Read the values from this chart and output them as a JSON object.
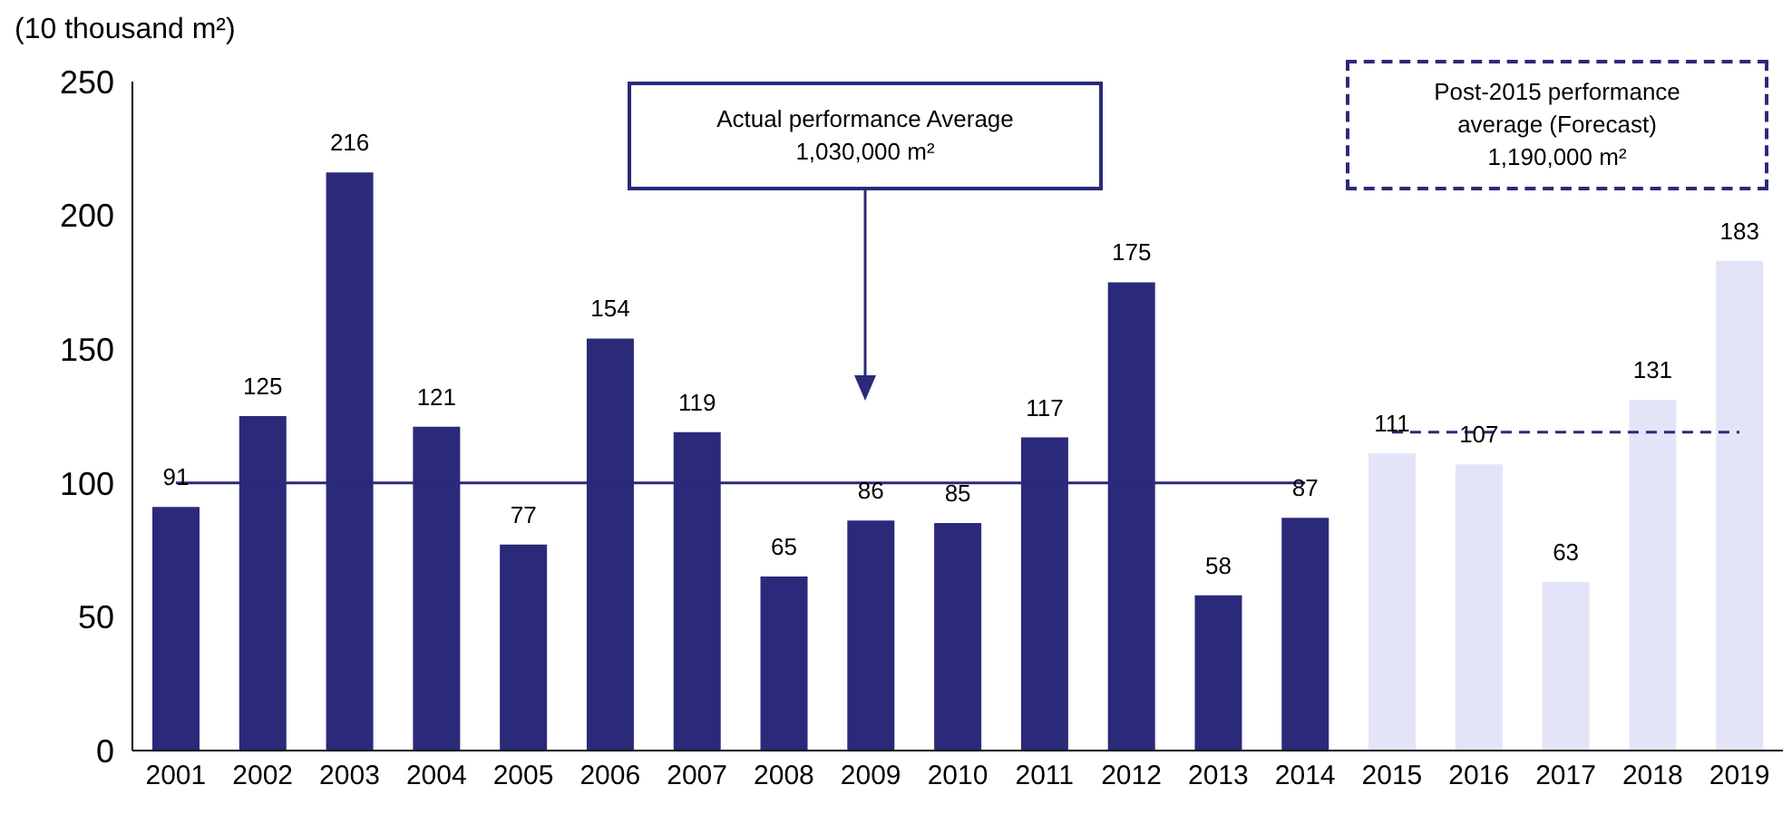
{
  "chart_data": {
    "type": "bar",
    "ylabel": "(10 thousand m²)",
    "categories": [
      "2001",
      "2002",
      "2003",
      "2004",
      "2005",
      "2006",
      "2007",
      "2008",
      "2009",
      "2010",
      "2011",
      "2012",
      "2013",
      "2014",
      "2015",
      "2016",
      "2017",
      "2018",
      "2019"
    ],
    "series": [
      {
        "colors": [
          "#2b2a7a",
          "#2b2a7a",
          "#2b2a7a",
          "#2b2a7a",
          "#2b2a7a",
          "#2b2a7a",
          "#2b2a7a",
          "#2b2a7a",
          "#2b2a7a",
          "#2b2a7a",
          "#2b2a7a",
          "#2b2a7a",
          "#2b2a7a",
          "#2b2a7a",
          "#e4e4f8",
          "#e4e4f8",
          "#e4e4f8",
          "#e4e4f8",
          "#e4e4f8"
        ],
        "values": [
          91,
          125,
          216,
          121,
          77,
          154,
          119,
          65,
          86,
          85,
          117,
          175,
          58,
          87,
          111,
          107,
          63,
          131,
          183
        ],
        "value_labels": [
          "91",
          "125",
          "216",
          "121",
          "77",
          "154",
          "119",
          "65",
          "86",
          "85",
          "117",
          "175",
          "58",
          "87",
          "111",
          "107",
          "63",
          "131",
          "183"
        ]
      },
      {
        "type": "line",
        "color": "#2b2a7a",
        "line_style": "solid",
        "values": [
          100,
          100,
          100,
          100,
          100,
          100,
          100,
          100,
          100,
          100,
          100,
          100,
          100,
          100,
          null,
          null,
          null,
          null,
          null
        ]
      },
      {
        "type": "line",
        "color": "#2b2a7a",
        "line_style": "dashed",
        "values": [
          null,
          null,
          null,
          null,
          null,
          null,
          null,
          null,
          null,
          null,
          null,
          null,
          null,
          null,
          119,
          119,
          119,
          119,
          119
        ]
      }
    ],
    "ylim": [
      0,
      250
    ],
    "yticks": [
      0,
      50,
      100,
      150,
      200,
      250
    ],
    "grid": false,
    "legend": false,
    "annotations": [
      "Actual performance Average\n1,030,000 m²",
      "Post-2015 performance\naverage (Forecast)\n1,190,000 m²"
    ]
  }
}
